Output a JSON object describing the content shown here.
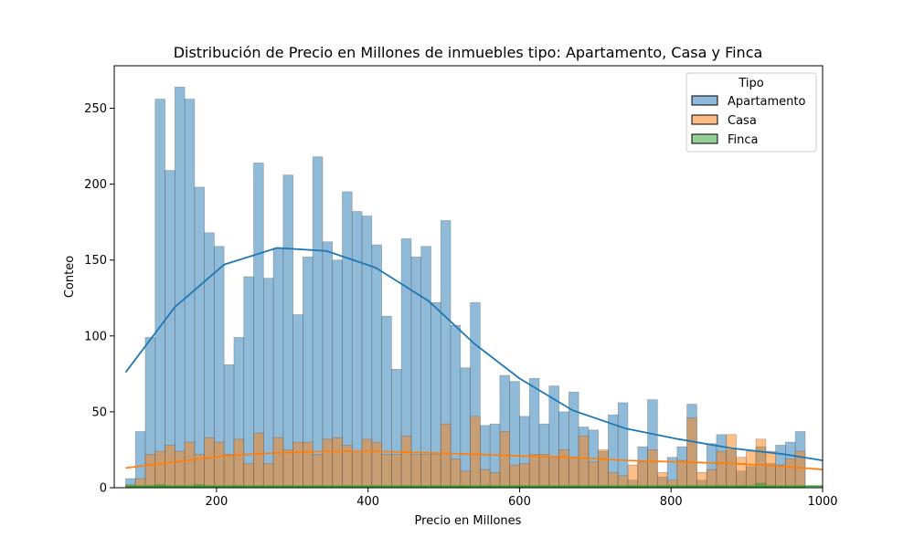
{
  "chart_data": {
    "type": "histogram",
    "title": "Distribución de Precio en Millones de inmuebles tipo: Apartamento, Casa y Finca",
    "xlabel": "Precio en Millones",
    "ylabel": "Conteo",
    "xlim": [
      65,
      1000
    ],
    "ylim": [
      0,
      278
    ],
    "xticks": [
      200,
      400,
      600,
      800,
      1000
    ],
    "yticks": [
      0,
      50,
      100,
      150,
      200,
      250
    ],
    "bin_start": 80,
    "bin_width": 13,
    "grid": false,
    "legend": {
      "title": "Tipo",
      "position": "top-right",
      "entries": [
        "Apartamento",
        "Casa",
        "Finca"
      ]
    },
    "series": [
      {
        "name": "Apartamento",
        "color": "#1f77b4",
        "fill_color": "#8fb9dc",
        "values": [
          6,
          37,
          99,
          256,
          209,
          264,
          256,
          198,
          168,
          159,
          81,
          99,
          139,
          214,
          138,
          158,
          206,
          114,
          152,
          218,
          162,
          150,
          195,
          182,
          179,
          160,
          113,
          78,
          164,
          152,
          159,
          122,
          176,
          107,
          79,
          122,
          41,
          42,
          74,
          70,
          47,
          72,
          42,
          67,
          50,
          63,
          40,
          38,
          24,
          48,
          56,
          5,
          27,
          58,
          7,
          20,
          27,
          55,
          5,
          29,
          35,
          25,
          11,
          14,
          27,
          16,
          28,
          30,
          37
        ],
        "kde": [
          [
            80,
            76
          ],
          [
            145,
            119
          ],
          [
            210,
            147
          ],
          [
            280,
            158
          ],
          [
            345,
            156
          ],
          [
            410,
            145
          ],
          [
            480,
            123
          ],
          [
            540,
            95
          ],
          [
            600,
            72
          ],
          [
            670,
            51
          ],
          [
            740,
            39
          ],
          [
            810,
            32
          ],
          [
            880,
            26
          ],
          [
            950,
            22
          ],
          [
            1000,
            18
          ]
        ]
      },
      {
        "name": "Casa",
        "color": "#ff7f0e",
        "fill_color": "#ffbb83",
        "values": [
          2,
          6,
          22,
          24,
          28,
          24,
          30,
          22,
          33,
          30,
          22,
          32,
          16,
          36,
          16,
          33,
          25,
          30,
          30,
          22,
          32,
          33,
          28,
          24,
          32,
          30,
          22,
          22,
          34,
          22,
          22,
          22,
          42,
          19,
          11,
          47,
          12,
          10,
          37,
          15,
          16,
          22,
          22,
          20,
          25,
          20,
          34,
          17,
          25,
          10,
          8,
          15,
          17,
          25,
          10,
          5,
          18,
          46,
          10,
          12,
          24,
          35,
          20,
          24,
          32,
          24,
          15,
          19,
          24
        ],
        "kde": [
          [
            80,
            13
          ],
          [
            145,
            17
          ],
          [
            210,
            21
          ],
          [
            280,
            23
          ],
          [
            345,
            24
          ],
          [
            410,
            24
          ],
          [
            480,
            23
          ],
          [
            540,
            22
          ],
          [
            600,
            21
          ],
          [
            670,
            20
          ],
          [
            740,
            18
          ],
          [
            810,
            17
          ],
          [
            880,
            16
          ],
          [
            950,
            14
          ],
          [
            1000,
            12
          ]
        ]
      },
      {
        "name": "Finca",
        "color": "#2ca02c",
        "fill_color": "#97cf97",
        "values": [
          1,
          1,
          1,
          2,
          1,
          1,
          1,
          2,
          1,
          1,
          1,
          1,
          1,
          1,
          1,
          1,
          1,
          1,
          1,
          1,
          1,
          1,
          1,
          1,
          1,
          1,
          1,
          1,
          1,
          1,
          1,
          1,
          1,
          1,
          1,
          1,
          1,
          1,
          1,
          1,
          1,
          1,
          1,
          1,
          1,
          1,
          1,
          1,
          1,
          1,
          1,
          1,
          1,
          1,
          1,
          1,
          1,
          1,
          1,
          1,
          1,
          1,
          1,
          1,
          3,
          1,
          1,
          1,
          1
        ],
        "kde": [
          [
            80,
            1
          ],
          [
            300,
            1
          ],
          [
            600,
            1
          ],
          [
            1000,
            1
          ]
        ]
      }
    ]
  }
}
